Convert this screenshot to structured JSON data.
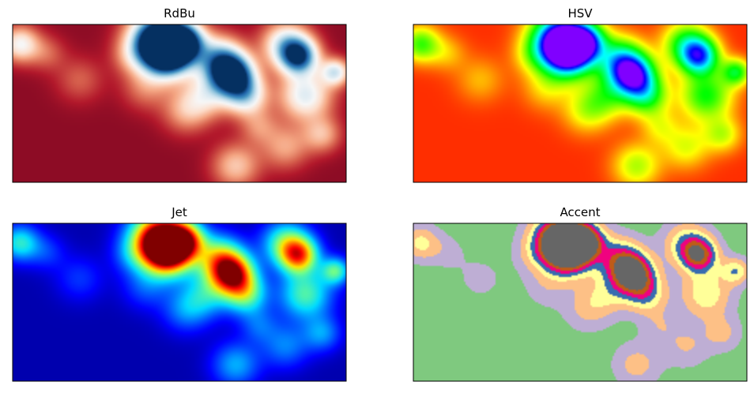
{
  "chart_data": [
    {
      "type": "heatmap",
      "title": "RdBu",
      "colormap": "RdBu",
      "xticks": [],
      "yticks": []
    },
    {
      "type": "heatmap",
      "title": "HSV",
      "colormap": "hsv",
      "xticks": [],
      "yticks": []
    },
    {
      "type": "heatmap",
      "title": "Jet",
      "colormap": "jet",
      "xticks": [],
      "yticks": []
    },
    {
      "type": "heatmap",
      "title": "Accent",
      "colormap": "Accent",
      "xticks": [],
      "yticks": []
    }
  ]
}
